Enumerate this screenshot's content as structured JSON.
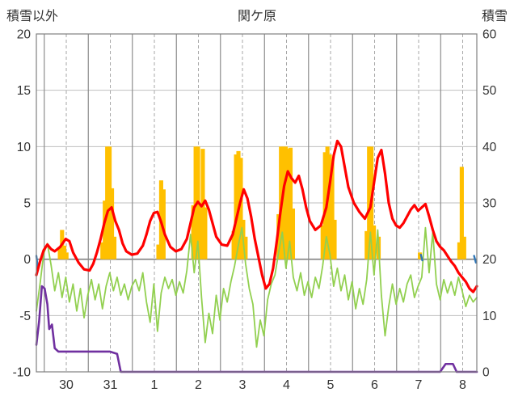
{
  "header": {
    "left_axis_title": "積雪以外",
    "station_title": "関ケ原",
    "right_axis_title": "積雪"
  },
  "chart_data": {
    "type": "combo-bar-line",
    "title": "関ケ原",
    "left_axis": {
      "title": "積雪以外",
      "min": -10,
      "max": 20,
      "ticks": [
        20,
        15,
        10,
        5,
        0,
        -5,
        -10
      ]
    },
    "right_axis": {
      "title": "積雪",
      "min": 0,
      "max": 60,
      "ticks": [
        60,
        50,
        40,
        30,
        20,
        10,
        0
      ]
    },
    "x_axis": {
      "labels": [
        "30",
        "31",
        "1",
        "2",
        "3",
        "4",
        "5",
        "6",
        "7",
        "8"
      ],
      "hours_total": 240,
      "first_noon_hour": 16.3,
      "day_span_hours": 24,
      "solid_gridlines_at": "midnight",
      "dashed_gridlines_at": "noon"
    },
    "colors": {
      "bars": "#FFC000",
      "red_line": "#FF0000",
      "green_line": "#92D050",
      "purple_line": "#7030A0",
      "blue_line": "#2E75B6",
      "grid_h": "#BFBFBF",
      "grid_v_solid": "#8C8C8C",
      "grid_v_dashed": "#A6A6A6",
      "zero_line": "#808080",
      "border": "#808080",
      "tick_text": "#333333"
    },
    "series": {
      "bars": {
        "type": "bar",
        "axis": "left",
        "color": "#FFC000",
        "bar_width_hours": 1.5,
        "points": [
          [
            12.8,
            1.0
          ],
          [
            14,
            2.6
          ],
          [
            15.2,
            1.2
          ],
          [
            16.4,
            0.6
          ],
          [
            36,
            1.5
          ],
          [
            37.3,
            5.2
          ],
          [
            38.6,
            10
          ],
          [
            39.9,
            10
          ],
          [
            41.2,
            6.3
          ],
          [
            42.5,
            2.0
          ],
          [
            66.5,
            1.3
          ],
          [
            68,
            7.0
          ],
          [
            69.3,
            6.2
          ],
          [
            85.5,
            4.8
          ],
          [
            86.8,
            10
          ],
          [
            88.1,
            10
          ],
          [
            89.4,
            5.0
          ],
          [
            90.7,
            9.8
          ],
          [
            92,
            4.6
          ],
          [
            107.5,
            2.5
          ],
          [
            108.8,
            9.3
          ],
          [
            110.1,
            9.6
          ],
          [
            111.4,
            9.0
          ],
          [
            112.7,
            3.5
          ],
          [
            114,
            2.0
          ],
          [
            132,
            4.0
          ],
          [
            133.3,
            10
          ],
          [
            134.6,
            10
          ],
          [
            135.9,
            10
          ],
          [
            137.2,
            9.8
          ],
          [
            138.5,
            9.9
          ],
          [
            139.8,
            4.5
          ],
          [
            156,
            3.0
          ],
          [
            157.3,
            9.5
          ],
          [
            158.6,
            10
          ],
          [
            159.9,
            9.3
          ],
          [
            161.2,
            8.8
          ],
          [
            162.5,
            3.5
          ],
          [
            180,
            2.5
          ],
          [
            181.3,
            10
          ],
          [
            182.6,
            10
          ],
          [
            183.9,
            3.0
          ],
          [
            186.5,
            2.0
          ],
          [
            209,
            0.6
          ],
          [
            230.5,
            1.5
          ],
          [
            231.8,
            8.2
          ],
          [
            233.1,
            2.0
          ]
        ]
      },
      "red_line": {
        "type": "line",
        "axis": "left",
        "color": "#FF0000",
        "width": 3.2,
        "points": [
          [
            0,
            -1.4
          ],
          [
            2,
            -0.2
          ],
          [
            4,
            0.8
          ],
          [
            6,
            1.3
          ],
          [
            8,
            0.9
          ],
          [
            10,
            0.7
          ],
          [
            13,
            1.1
          ],
          [
            16,
            1.8
          ],
          [
            18,
            1.6
          ],
          [
            20,
            0.6
          ],
          [
            23,
            -0.3
          ],
          [
            26,
            -0.9
          ],
          [
            29,
            -1.0
          ],
          [
            31,
            -0.4
          ],
          [
            33,
            0.6
          ],
          [
            35,
            1.8
          ],
          [
            37,
            3.2
          ],
          [
            39,
            4.3
          ],
          [
            41,
            4.6
          ],
          [
            43,
            3.4
          ],
          [
            45,
            2.6
          ],
          [
            47,
            1.4
          ],
          [
            49,
            0.7
          ],
          [
            52,
            0.4
          ],
          [
            55,
            0.5
          ],
          [
            58,
            1.2
          ],
          [
            60,
            2.2
          ],
          [
            62,
            3.4
          ],
          [
            64,
            4.1
          ],
          [
            66,
            4.2
          ],
          [
            68,
            3.3
          ],
          [
            70,
            2.2
          ],
          [
            73,
            1.1
          ],
          [
            76,
            0.7
          ],
          [
            79,
            0.9
          ],
          [
            82,
            1.8
          ],
          [
            84,
            3.2
          ],
          [
            86,
            4.6
          ],
          [
            88,
            5.1
          ],
          [
            90,
            4.7
          ],
          [
            92,
            5.2
          ],
          [
            94,
            4.4
          ],
          [
            96,
            3.2
          ],
          [
            98,
            2.0
          ],
          [
            101,
            1.3
          ],
          [
            104,
            1.2
          ],
          [
            107,
            2.2
          ],
          [
            109,
            3.6
          ],
          [
            111,
            5.0
          ],
          [
            113,
            6.2
          ],
          [
            115,
            5.4
          ],
          [
            117,
            3.8
          ],
          [
            119,
            1.8
          ],
          [
            121,
            0.2
          ],
          [
            123,
            -1.4
          ],
          [
            125,
            -2.6
          ],
          [
            127,
            -2.2
          ],
          [
            129,
            -0.8
          ],
          [
            131,
            1.6
          ],
          [
            133,
            4.2
          ],
          [
            135,
            6.5
          ],
          [
            137,
            7.8
          ],
          [
            139,
            7.2
          ],
          [
            141,
            6.8
          ],
          [
            143,
            7.4
          ],
          [
            145,
            6.2
          ],
          [
            147,
            4.6
          ],
          [
            149,
            3.4
          ],
          [
            152,
            2.6
          ],
          [
            155,
            3.0
          ],
          [
            158,
            4.6
          ],
          [
            160,
            6.8
          ],
          [
            162,
            9.2
          ],
          [
            164,
            10.5
          ],
          [
            166,
            10.0
          ],
          [
            168,
            8.2
          ],
          [
            170,
            6.4
          ],
          [
            173,
            5.0
          ],
          [
            176,
            4.2
          ],
          [
            179,
            3.6
          ],
          [
            182,
            4.6
          ],
          [
            184,
            6.8
          ],
          [
            186,
            9.0
          ],
          [
            188,
            9.7
          ],
          [
            190,
            7.6
          ],
          [
            192,
            5.0
          ],
          [
            194,
            3.6
          ],
          [
            196,
            3.0
          ],
          [
            198,
            2.8
          ],
          [
            200,
            3.2
          ],
          [
            202,
            3.8
          ],
          [
            204,
            4.4
          ],
          [
            206,
            4.8
          ],
          [
            208,
            4.3
          ],
          [
            210,
            4.6
          ],
          [
            212,
            4.9
          ],
          [
            214,
            3.8
          ],
          [
            216,
            2.6
          ],
          [
            218,
            1.6
          ],
          [
            220,
            1.1
          ],
          [
            222,
            0.8
          ],
          [
            224,
            0.3
          ],
          [
            226,
            -0.2
          ],
          [
            228,
            -0.6
          ],
          [
            230,
            -1.2
          ],
          [
            232,
            -1.6
          ],
          [
            234,
            -2.0
          ],
          [
            236,
            -2.6
          ],
          [
            238,
            -2.9
          ],
          [
            240,
            -2.4
          ]
        ]
      },
      "green_line": {
        "type": "line",
        "axis": "left",
        "color": "#92D050",
        "width": 1.8,
        "points": [
          [
            0,
            -4.6
          ],
          [
            2,
            -2.2
          ],
          [
            4,
            0.5
          ],
          [
            6,
            1.4
          ],
          [
            8,
            -0.5
          ],
          [
            10,
            -2.8
          ],
          [
            12,
            -1.2
          ],
          [
            14,
            -3.4
          ],
          [
            16,
            -1.6
          ],
          [
            18,
            -3.8
          ],
          [
            20,
            -2.2
          ],
          [
            22,
            -4.6
          ],
          [
            24,
            -2.6
          ],
          [
            26,
            -5.2
          ],
          [
            28,
            -3.2
          ],
          [
            30,
            -1.8
          ],
          [
            32,
            -3.6
          ],
          [
            34,
            -2.2
          ],
          [
            36,
            -4.4
          ],
          [
            38,
            -2.4
          ],
          [
            40,
            -1.2
          ],
          [
            42,
            -2.8
          ],
          [
            44,
            -1.6
          ],
          [
            46,
            -3.2
          ],
          [
            48,
            -2.2
          ],
          [
            50,
            -3.6
          ],
          [
            52,
            -2.4
          ],
          [
            54,
            -1.8
          ],
          [
            56,
            -2.8
          ],
          [
            58,
            -1.2
          ],
          [
            60,
            -3.8
          ],
          [
            62,
            -5.6
          ],
          [
            64,
            -2.2
          ],
          [
            66,
            -6.4
          ],
          [
            68,
            -3.0
          ],
          [
            70,
            -1.6
          ],
          [
            72,
            -2.6
          ],
          [
            74,
            -1.8
          ],
          [
            76,
            -3.2
          ],
          [
            78,
            -2.0
          ],
          [
            80,
            -3.0
          ],
          [
            82,
            -1.0
          ],
          [
            84,
            2.2
          ],
          [
            86,
            -1.2
          ],
          [
            88,
            1.6
          ],
          [
            90,
            -3.4
          ],
          [
            92,
            -7.4
          ],
          [
            94,
            -4.8
          ],
          [
            96,
            -6.6
          ],
          [
            98,
            -3.2
          ],
          [
            100,
            -5.4
          ],
          [
            102,
            -2.6
          ],
          [
            104,
            -3.8
          ],
          [
            106,
            -2.0
          ],
          [
            108,
            -0.6
          ],
          [
            110,
            1.2
          ],
          [
            112,
            2.8
          ],
          [
            114,
            -0.4
          ],
          [
            116,
            -2.6
          ],
          [
            118,
            -4.0
          ],
          [
            120,
            -7.8
          ],
          [
            122,
            -5.4
          ],
          [
            124,
            -6.8
          ],
          [
            126,
            -3.6
          ],
          [
            128,
            -2.2
          ],
          [
            130,
            -1.4
          ],
          [
            132,
            0.6
          ],
          [
            134,
            2.4
          ],
          [
            136,
            -0.8
          ],
          [
            138,
            1.6
          ],
          [
            140,
            -1.6
          ],
          [
            142,
            -2.8
          ],
          [
            144,
            -1.2
          ],
          [
            146,
            -3.2
          ],
          [
            148,
            -2.0
          ],
          [
            150,
            -3.4
          ],
          [
            152,
            -1.6
          ],
          [
            154,
            -2.6
          ],
          [
            156,
            -0.6
          ],
          [
            158,
            2.0
          ],
          [
            160,
            0.4
          ],
          [
            162,
            -2.4
          ],
          [
            164,
            -0.8
          ],
          [
            166,
            -2.8
          ],
          [
            168,
            -1.4
          ],
          [
            170,
            -3.6
          ],
          [
            172,
            -2.0
          ],
          [
            174,
            -4.4
          ],
          [
            176,
            -2.6
          ],
          [
            178,
            -4.0
          ],
          [
            180,
            -1.8
          ],
          [
            182,
            2.4
          ],
          [
            184,
            -1.4
          ],
          [
            186,
            2.6
          ],
          [
            188,
            -3.2
          ],
          [
            190,
            -6.8
          ],
          [
            192,
            -4.2
          ],
          [
            194,
            -2.2
          ],
          [
            196,
            -4.0
          ],
          [
            198,
            -2.6
          ],
          [
            200,
            -3.8
          ],
          [
            202,
            -2.2
          ],
          [
            204,
            -1.4
          ],
          [
            206,
            -3.4
          ],
          [
            208,
            -2.4
          ],
          [
            210,
            -1.6
          ],
          [
            212,
            2.8
          ],
          [
            214,
            -1.2
          ],
          [
            216,
            2.4
          ],
          [
            218,
            -2.2
          ],
          [
            220,
            -3.6
          ],
          [
            222,
            -1.8
          ],
          [
            224,
            -3.0
          ],
          [
            226,
            -2.0
          ],
          [
            228,
            -3.2
          ],
          [
            230,
            -1.6
          ],
          [
            232,
            -2.8
          ],
          [
            234,
            -4.2
          ],
          [
            236,
            -3.2
          ],
          [
            238,
            -3.8
          ],
          [
            240,
            -3.4
          ]
        ]
      },
      "purple_line": {
        "type": "line",
        "axis": "left",
        "color": "#7030A0",
        "width": 2.6,
        "points": [
          [
            0,
            -7.6
          ],
          [
            1.5,
            -5.5
          ],
          [
            3,
            -2.4
          ],
          [
            4.5,
            -2.6
          ],
          [
            6,
            -4.0
          ],
          [
            7,
            -6.2
          ],
          [
            8.5,
            -5.8
          ],
          [
            10,
            -7.9
          ],
          [
            12,
            -8.2
          ],
          [
            40,
            -8.2
          ],
          [
            44,
            -8.4
          ],
          [
            46,
            -10
          ],
          [
            220,
            -10
          ],
          [
            223,
            -9.3
          ],
          [
            227,
            -9.3
          ],
          [
            229,
            -10
          ],
          [
            240,
            -10
          ]
        ]
      },
      "blue_segments": {
        "type": "line",
        "axis": "left",
        "color": "#2E75B6",
        "width": 2.4,
        "segments": [
          [
            [
              0,
              0.3
            ],
            [
              0.8,
              -0.8
            ]
          ],
          [
            [
              209.5,
              0.4
            ],
            [
              210.3,
              -0.1
            ]
          ],
          [
            [
              238.5,
              0.3
            ],
            [
              239.5,
              -0.3
            ]
          ]
        ]
      }
    }
  }
}
